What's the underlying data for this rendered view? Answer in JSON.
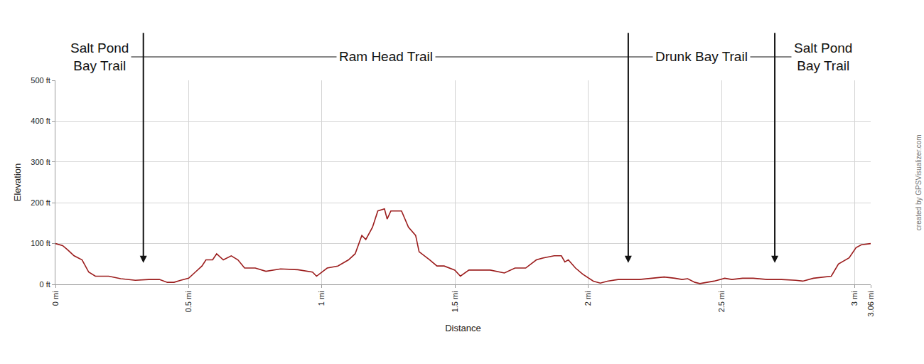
{
  "chart_data": {
    "type": "line",
    "x_label": "Distance",
    "y_label": "Elevation",
    "color": "#9b1c1c",
    "grid": true,
    "xlim": [
      0,
      3.06
    ],
    "ylim": [
      0,
      500
    ],
    "xticks": [
      {
        "value": 0,
        "label": "0 mi"
      },
      {
        "value": 0.5,
        "label": "0.5 mi"
      },
      {
        "value": 1,
        "label": "1 mi"
      },
      {
        "value": 1.5,
        "label": "1.5 mi"
      },
      {
        "value": 2,
        "label": "2 mi"
      },
      {
        "value": 2.5,
        "label": "2.5 mi"
      },
      {
        "value": 3,
        "label": "3 mi"
      },
      {
        "value": 3.06,
        "label": "3.06 mi"
      }
    ],
    "yticks": [
      {
        "value": 0,
        "label": "0 ft"
      },
      {
        "value": 100,
        "label": "100 ft"
      },
      {
        "value": 200,
        "label": "200 ft"
      },
      {
        "value": 300,
        "label": "300 ft"
      },
      {
        "value": 400,
        "label": "400 ft"
      },
      {
        "value": 500,
        "label": "500 ft"
      }
    ],
    "x": [
      0,
      0.027,
      0.045,
      0.07,
      0.1,
      0.125,
      0.15,
      0.2,
      0.245,
      0.3,
      0.35,
      0.39,
      0.42,
      0.445,
      0.47,
      0.5,
      0.525,
      0.55,
      0.565,
      0.59,
      0.605,
      0.63,
      0.66,
      0.685,
      0.71,
      0.75,
      0.79,
      0.845,
      0.91,
      0.965,
      0.98,
      1.02,
      1.06,
      1.1,
      1.125,
      1.15,
      1.165,
      1.19,
      1.21,
      1.235,
      1.245,
      1.259,
      1.299,
      1.325,
      1.352,
      1.365,
      1.405,
      1.432,
      1.459,
      1.499,
      1.52,
      1.552,
      1.632,
      1.685,
      1.725,
      1.765,
      1.805,
      1.832,
      1.872,
      1.899,
      1.912,
      1.925,
      1.952,
      1.979,
      2.019,
      2.045,
      2.072,
      2.112,
      2.192,
      2.245,
      2.285,
      2.325,
      2.352,
      2.373,
      2.4,
      2.419,
      2.445,
      2.472,
      2.512,
      2.539,
      2.579,
      2.619,
      2.672,
      2.725,
      2.779,
      2.805,
      2.845,
      2.885,
      2.912,
      2.939,
      2.979,
      3.005,
      3.025,
      3.06
    ],
    "values": [
      100,
      95,
      85,
      70,
      60,
      30,
      20,
      20,
      14,
      10,
      12,
      12,
      5,
      5,
      10,
      15,
      30,
      45,
      60,
      60,
      75,
      60,
      70,
      60,
      40,
      40,
      32,
      38,
      36,
      30,
      20,
      40,
      45,
      60,
      75,
      120,
      110,
      140,
      180,
      185,
      160,
      180,
      180,
      140,
      120,
      80,
      60,
      45,
      45,
      35,
      20,
      35,
      35,
      28,
      40,
      40,
      60,
      65,
      70,
      70,
      55,
      60,
      40,
      25,
      8,
      3,
      8,
      12,
      12,
      15,
      18,
      15,
      12,
      14,
      5,
      2,
      5,
      8,
      15,
      12,
      15,
      15,
      12,
      12,
      10,
      8,
      15,
      18,
      20,
      50,
      65,
      90,
      97,
      100
    ],
    "sections": [
      {
        "label": "Salt Pond\nBay Trail",
        "start": 0,
        "end": 0.33
      },
      {
        "label": "Ram Head Trail",
        "start": 0.33,
        "end": 2.15
      },
      {
        "label": "Drunk Bay Trail",
        "start": 2.15,
        "end": 2.7
      },
      {
        "label": "Salt Pond\nBay Trail",
        "start": 2.7,
        "end": 3.06
      }
    ],
    "annotations": [
      "created by GPSVisualizer.com"
    ]
  }
}
